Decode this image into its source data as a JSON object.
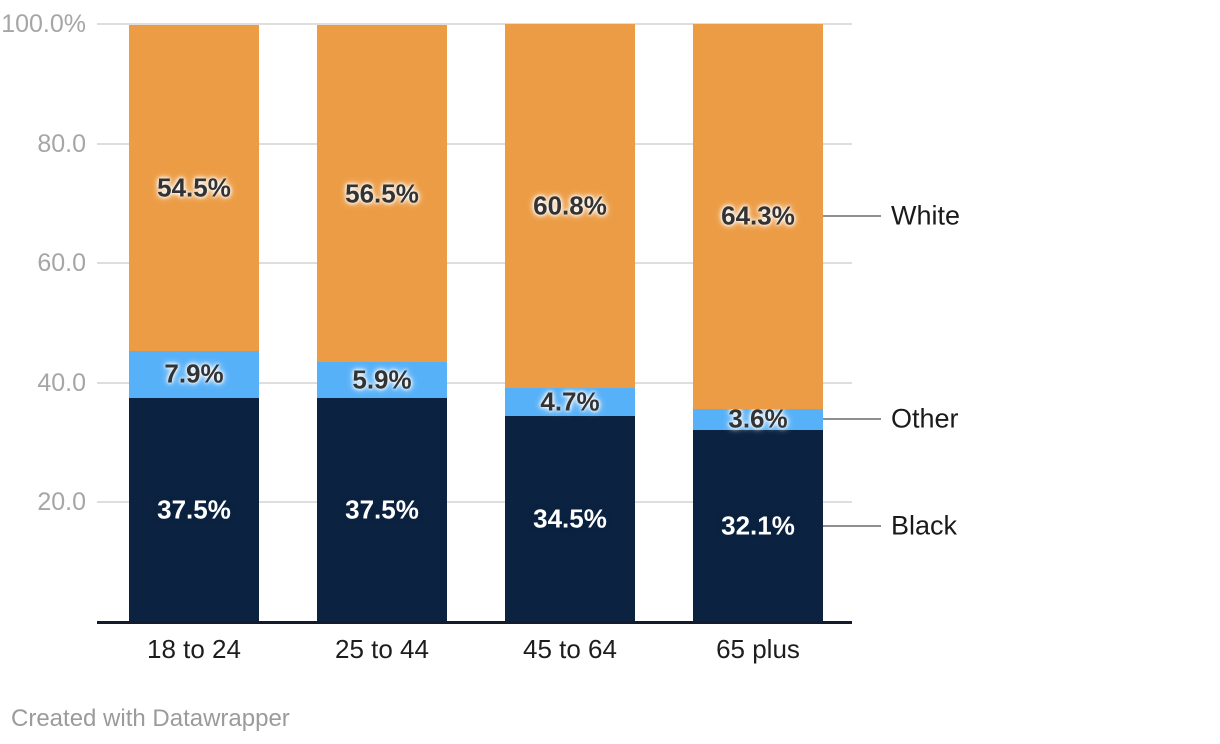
{
  "chart_data": {
    "type": "bar",
    "subtype": "stacked-column",
    "categories": [
      "18 to 24",
      "25 to 44",
      "45 to 64",
      "65 plus"
    ],
    "series": [
      {
        "name": "Black",
        "color": "#0b2340",
        "values": [
          37.5,
          37.5,
          34.5,
          32.1
        ],
        "labels": [
          "37.5%",
          "37.5%",
          "34.5%",
          "32.1%"
        ],
        "label_color": "#ffffff"
      },
      {
        "name": "Other",
        "color": "#57b1f8",
        "values": [
          7.9,
          5.9,
          4.7,
          3.6
        ],
        "labels": [
          "7.9%",
          "5.9%",
          "4.7%",
          "3.6%"
        ],
        "label_color": "#333333"
      },
      {
        "name": "White",
        "color": "#ec9c44",
        "values": [
          54.5,
          56.5,
          60.8,
          64.3
        ],
        "labels": [
          "54.5%",
          "56.5%",
          "60.8%",
          "64.3%"
        ],
        "label_color": "#333333"
      }
    ],
    "y_axis": {
      "tick_labels": [
        "100.0%",
        "80.0",
        "60.0",
        "40.0",
        "20.0"
      ],
      "tick_values": [
        100,
        80,
        60,
        40,
        20
      ],
      "ylim": [
        0,
        100
      ],
      "grid": true
    },
    "legend": {
      "position": "right",
      "items": [
        "White",
        "Other",
        "Black"
      ]
    },
    "grid_color": "#dedede",
    "axis_line_color": "#141c2c"
  },
  "footer": {
    "credit": "Created with Datawrapper"
  }
}
